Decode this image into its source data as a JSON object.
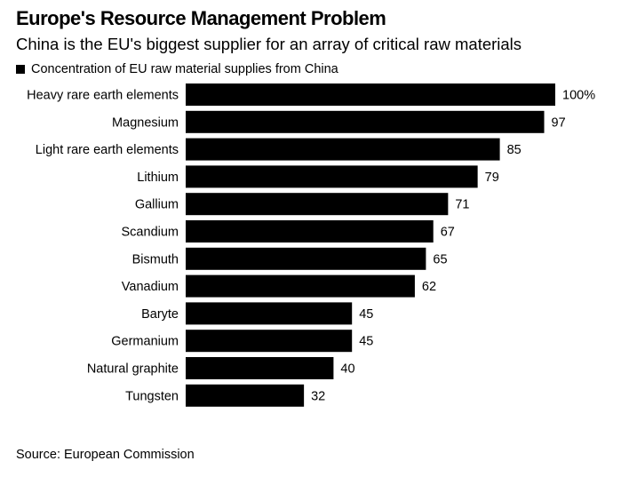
{
  "header": {
    "title": "Europe's Resource Management Problem",
    "subtitle": "China is the EU's biggest supplier for an array of critical raw materials"
  },
  "legend": {
    "label": "Concentration of EU raw material supplies from China"
  },
  "footer": {
    "source": "Source: European Commission"
  },
  "colors": {
    "bar": "#000000",
    "text": "#000000",
    "background": "#ffffff"
  },
  "chart_data": {
    "type": "bar",
    "orientation": "horizontal",
    "categories": [
      "Heavy rare earth elements",
      "Magnesium",
      "Light rare earth elements",
      "Lithium",
      "Gallium",
      "Scandium",
      "Bismuth",
      "Vanadium",
      "Baryte",
      "Germanium",
      "Natural graphite",
      "Tungsten"
    ],
    "values": [
      100,
      97,
      85,
      79,
      71,
      67,
      65,
      62,
      45,
      45,
      40,
      32
    ],
    "value_labels": [
      "100%",
      "97",
      "85",
      "79",
      "71",
      "67",
      "65",
      "62",
      "45",
      "45",
      "40",
      "32"
    ],
    "series": [
      {
        "name": "Concentration of EU raw material supplies from China",
        "values": [
          100,
          97,
          85,
          79,
          71,
          67,
          65,
          62,
          45,
          45,
          40,
          32
        ]
      }
    ],
    "xlim": [
      0,
      100
    ],
    "grid": false,
    "legend_position": "top-left",
    "title": "Europe's Resource Management Problem",
    "subtitle": "China is the EU's biggest supplier for an array of critical raw materials",
    "xlabel": "",
    "ylabel": ""
  }
}
